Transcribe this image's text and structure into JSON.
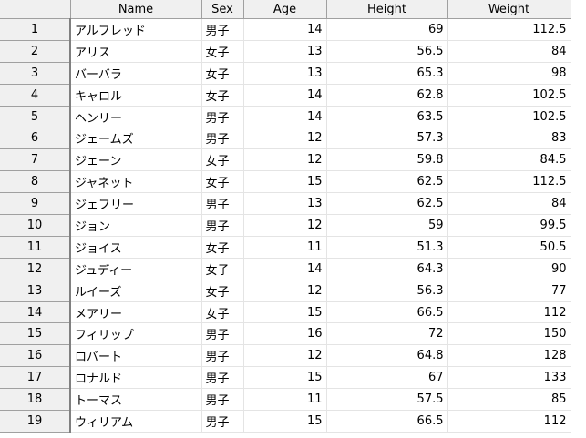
{
  "columns": [
    "",
    "Name",
    "Sex",
    "Age",
    "Height",
    "Weight"
  ],
  "rows": [
    [
      "1",
      "アルフレッド",
      "男子",
      "14",
      "69",
      "112.5"
    ],
    [
      "2",
      "アリス",
      "女子",
      "13",
      "56.5",
      "84"
    ],
    [
      "3",
      "バーバラ",
      "女子",
      "13",
      "65.3",
      "98"
    ],
    [
      "4",
      "キャロル",
      "女子",
      "14",
      "62.8",
      "102.5"
    ],
    [
      "5",
      "ヘンリー",
      "男子",
      "14",
      "63.5",
      "102.5"
    ],
    [
      "6",
      "ジェームズ",
      "男子",
      "12",
      "57.3",
      "83"
    ],
    [
      "7",
      "ジェーン",
      "女子",
      "12",
      "59.8",
      "84.5"
    ],
    [
      "8",
      "ジャネット",
      "女子",
      "15",
      "62.5",
      "112.5"
    ],
    [
      "9",
      "ジェフリー",
      "男子",
      "13",
      "62.5",
      "84"
    ],
    [
      "10",
      "ジョン",
      "男子",
      "12",
      "59",
      "99.5"
    ],
    [
      "11",
      "ジョイス",
      "女子",
      "11",
      "51.3",
      "50.5"
    ],
    [
      "12",
      "ジュディー",
      "女子",
      "14",
      "64.3",
      "90"
    ],
    [
      "13",
      "ルイーズ",
      "女子",
      "12",
      "56.3",
      "77"
    ],
    [
      "14",
      "メアリー",
      "女子",
      "15",
      "66.5",
      "112"
    ],
    [
      "15",
      "フィリップ",
      "男子",
      "16",
      "72",
      "150"
    ],
    [
      "16",
      "ロバート",
      "男子",
      "12",
      "64.8",
      "128"
    ],
    [
      "17",
      "ロナルド",
      "男子",
      "15",
      "67",
      "133"
    ],
    [
      "18",
      "トーマス",
      "男子",
      "11",
      "57.5",
      "85"
    ],
    [
      "19",
      "ウィリアム",
      "男子",
      "15",
      "66.5",
      "112"
    ]
  ]
}
